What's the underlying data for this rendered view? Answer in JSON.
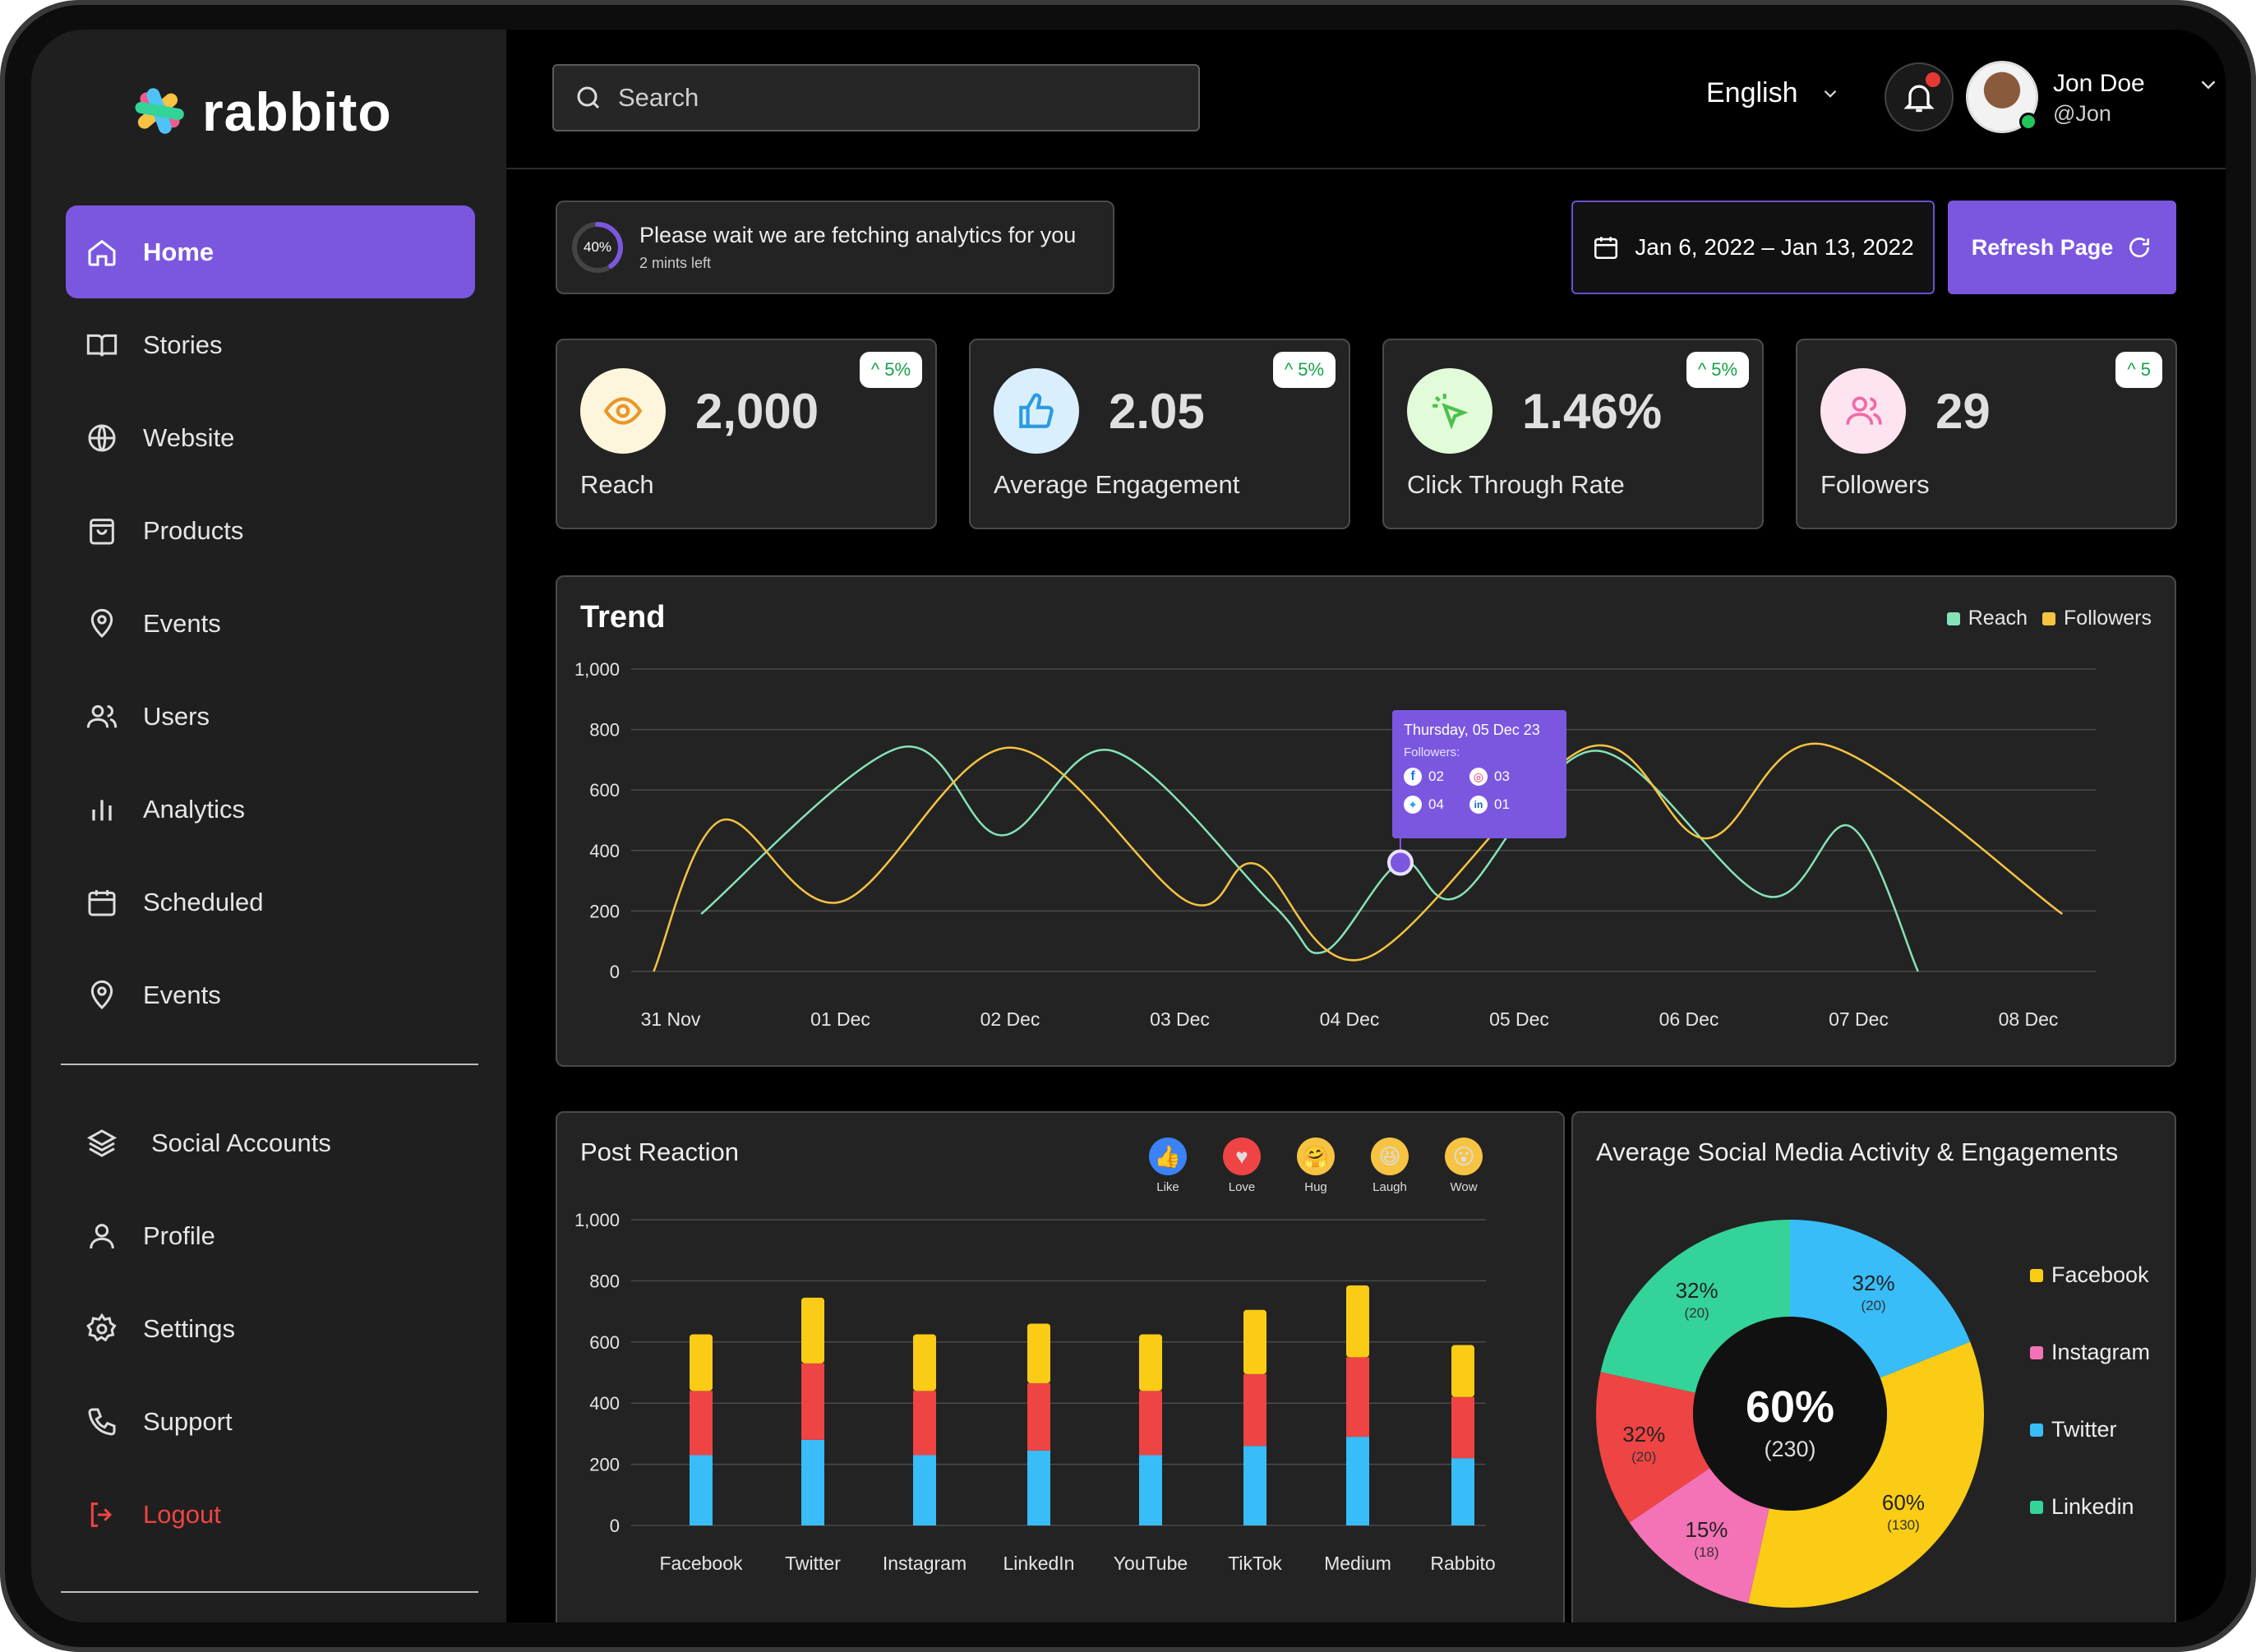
{
  "brand": {
    "name": "rabbito"
  },
  "nav": {
    "main": [
      "Home",
      "Stories",
      "Website",
      "Products",
      "Events",
      "Users",
      "Analytics",
      "Scheduled",
      "Events"
    ],
    "secondary": [
      "Social Accounts",
      "Profile",
      "Settings",
      "Support",
      "Logout"
    ],
    "active": "Home"
  },
  "topbar": {
    "search_placeholder": "Search",
    "language": "English",
    "user": {
      "name": "Jon Doe",
      "handle": "@Jon"
    }
  },
  "fetch": {
    "percent": "40%",
    "message": "Please wait we are fetching analytics for you",
    "eta": "2 mints left",
    "progress": 0.4
  },
  "date_range": "Jan 6, 2022 – Jan 13, 2022",
  "refresh_label": "Refresh Page",
  "stats": [
    {
      "value": "2,000",
      "label": "Reach",
      "badge": "5%",
      "icon": "eye-icon"
    },
    {
      "value": "2.05",
      "label": "Average Engagement",
      "badge": "5%",
      "icon": "thumbs-up-icon"
    },
    {
      "value": "1.46%",
      "label": "Click Through Rate",
      "badge": "5%",
      "icon": "cursor-click-icon"
    },
    {
      "value": "29",
      "label": "Followers",
      "badge": "5",
      "icon": "users-icon"
    }
  ],
  "colors": {
    "accent": "#7b57e0",
    "reach": "#86e3b8",
    "followers": "#f6c343",
    "facebook": "#facc15",
    "instagram": "#f472b6",
    "twitter": "#38bdf8",
    "linkedin": "#34d399",
    "red": "#ef4444"
  },
  "trend": {
    "title": "Trend",
    "legend": [
      "Reach",
      "Followers"
    ],
    "tooltip": {
      "title": "Thursday, 05 Dec 23",
      "subtitle": "Followers:",
      "facebook": "02",
      "instagram": "03",
      "twitter": "04",
      "linkedin": "01"
    }
  },
  "post_reaction": {
    "title": "Post Reaction",
    "reactions": [
      "Like",
      "Love",
      "Hug",
      "Laugh",
      "Wow"
    ]
  },
  "social_activity": {
    "title": "Average Social Media Activity & Engagements",
    "center_pct": "60%",
    "center_count": "(230)",
    "legend": [
      "Facebook",
      "Instagram",
      "Twitter",
      "Linkedin"
    ]
  },
  "chart_data": [
    {
      "type": "line",
      "title": "Trend",
      "x": [
        "31 Nov",
        "01 Dec",
        "02 Dec",
        "03 Dec",
        "04 Dec",
        "05 Dec",
        "06 Dec",
        "07 Dec",
        "08 Dec"
      ],
      "ylim": [
        0,
        1000
      ],
      "yticks": [
        "0",
        "200",
        "400",
        "600",
        "800",
        "1,000"
      ],
      "grid": true,
      "legend_position": "top-right",
      "series": [
        {
          "name": "Reach",
          "points": [
            [
              0.18,
              190
            ],
            [
              1.35,
              740
            ],
            [
              1.95,
              450
            ],
            [
              2.6,
              730
            ],
            [
              3.55,
              220
            ],
            [
              3.85,
              65
            ],
            [
              4.3,
              360
            ],
            [
              4.65,
              250
            ],
            [
              5.45,
              730
            ],
            [
              6.45,
              250
            ],
            [
              6.95,
              480
            ],
            [
              7.35,
              0
            ]
          ]
        },
        {
          "name": "Followers",
          "points": [
            [
              -0.1,
              0
            ],
            [
              0.3,
              500
            ],
            [
              1.0,
              230
            ],
            [
              2.0,
              740
            ],
            [
              3.05,
              230
            ],
            [
              3.45,
              355
            ],
            [
              4.1,
              45
            ],
            [
              5.4,
              740
            ],
            [
              6.1,
              440
            ],
            [
              6.8,
              750
            ],
            [
              8.2,
              190
            ]
          ]
        }
      ]
    },
    {
      "type": "bar",
      "title": "Post Reaction",
      "stacked": true,
      "categories": [
        "Facebook",
        "Twitter",
        "Instagram",
        "LinkedIn",
        "YouTube",
        "TikTok",
        "Medium",
        "Rabbito"
      ],
      "ylim": [
        0,
        1000
      ],
      "yticks": [
        "0",
        "200",
        "400",
        "600",
        "800",
        "1,000"
      ],
      "series": [
        {
          "name": "blue",
          "values": [
            230,
            280,
            230,
            245,
            230,
            260,
            290,
            220
          ]
        },
        {
          "name": "red",
          "values": [
            210,
            250,
            210,
            220,
            210,
            235,
            260,
            200
          ]
        },
        {
          "name": "yellow",
          "values": [
            185,
            215,
            185,
            195,
            185,
            210,
            235,
            170
          ]
        }
      ]
    },
    {
      "type": "pie",
      "title": "Average Social Media Activity & Engagements",
      "donut": true,
      "slices": [
        {
          "name": "Twitter",
          "pct": "32%",
          "count": "(20)",
          "value": 22
        },
        {
          "name": "Facebook",
          "pct": "60%",
          "count": "(130)",
          "value": 40
        },
        {
          "name": "Instagram",
          "pct": "15%",
          "count": "(18)",
          "value": 14
        },
        {
          "name": "Red",
          "pct": "32%",
          "count": "(20)",
          "value": 15
        },
        {
          "name": "Linkedin",
          "pct": "32%",
          "count": "(20)",
          "value": 25
        }
      ]
    }
  ]
}
